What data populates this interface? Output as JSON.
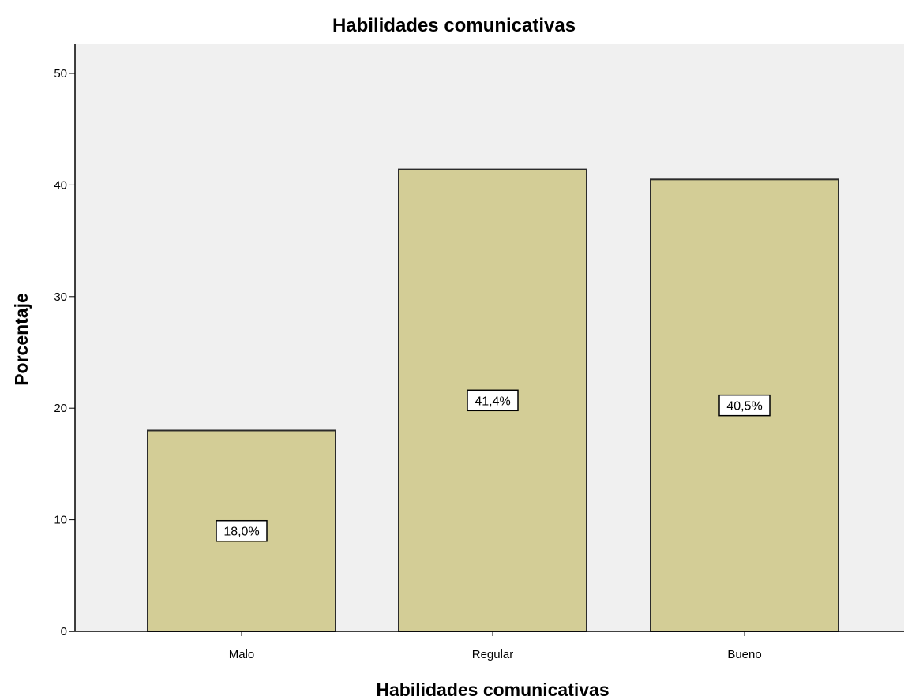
{
  "chart_data": {
    "type": "bar",
    "title": "Habilidades comunicativas",
    "xlabel": "Habilidades comunicativas",
    "ylabel": "Porcentaje",
    "categories": [
      "Malo",
      "Regular",
      "Bueno"
    ],
    "values": [
      18.0,
      41.4,
      40.5
    ],
    "data_labels": [
      "18,0%",
      "41,4%",
      "40,5%"
    ],
    "yticks": [
      0,
      10,
      20,
      30,
      40,
      50
    ],
    "ylim": [
      0,
      52.5
    ],
    "grid": false,
    "legend": "none",
    "colors": {
      "bar_fill": "#d3cd96",
      "bar_stroke": "#2b2b2b",
      "plot_background": "#f0f0f0",
      "axis": "#000000"
    }
  }
}
